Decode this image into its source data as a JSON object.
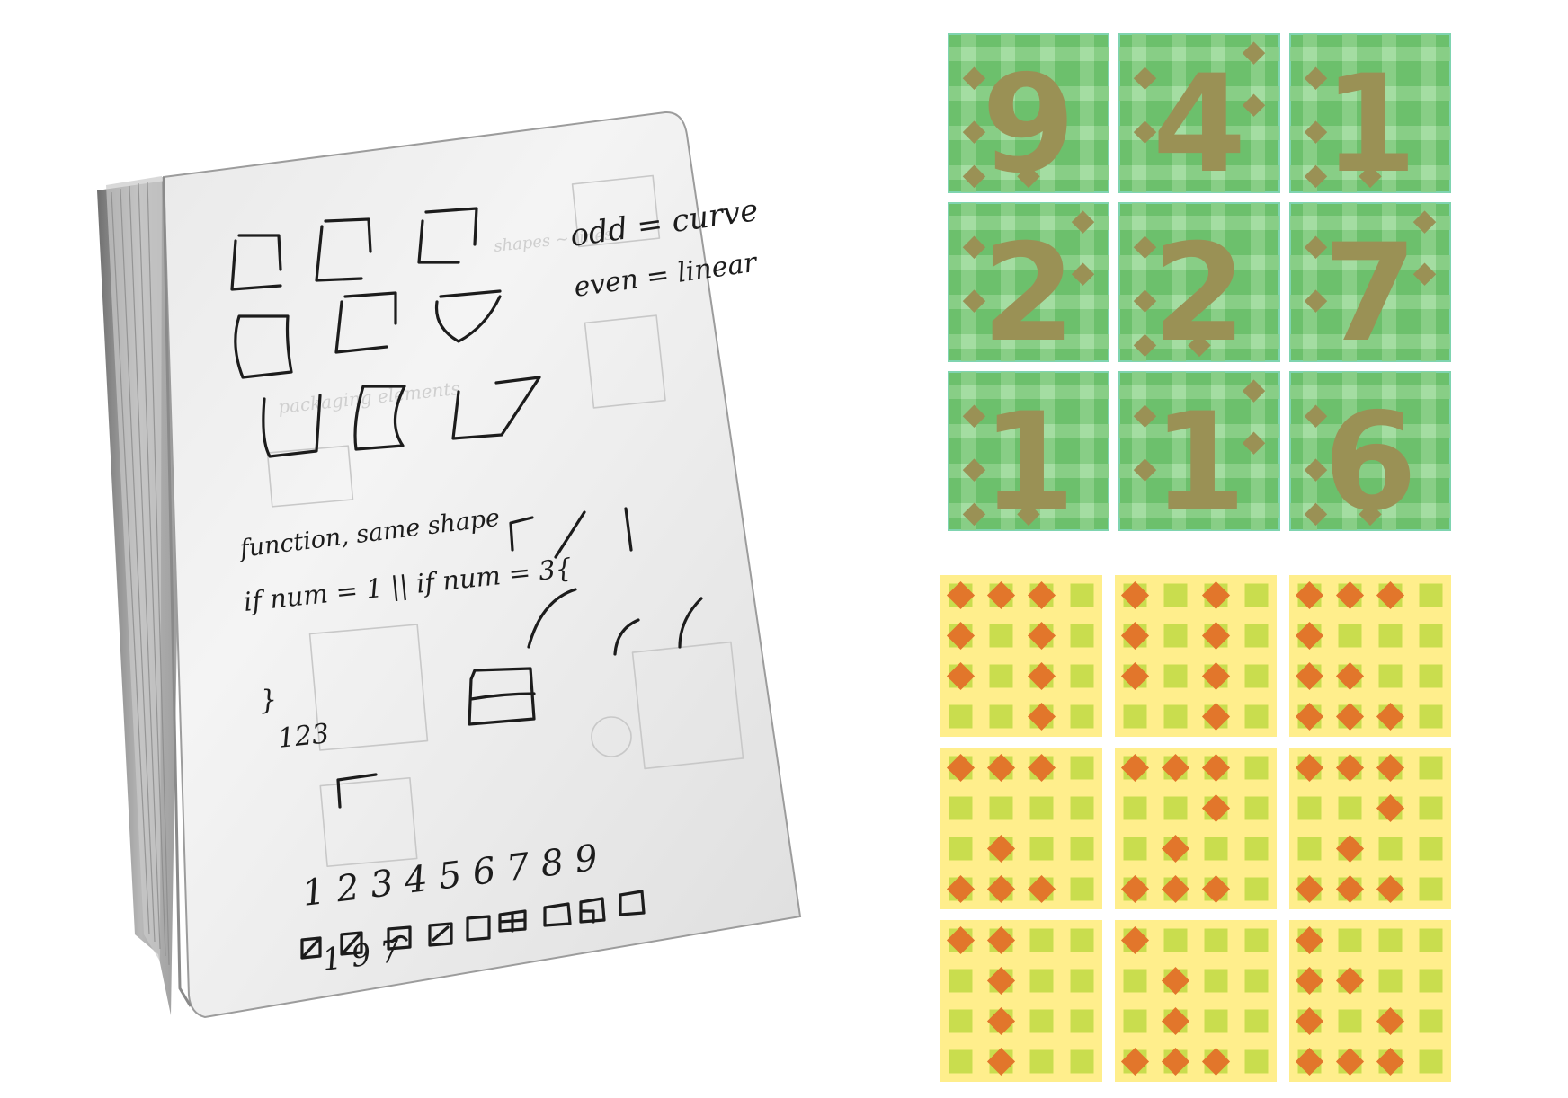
{
  "notebook": {
    "note_odd": "odd = curve",
    "note_even": "even = linear",
    "note_function": "function, same shape",
    "note_if": "if num = 1 || if num = 3{",
    "note_close": "}",
    "note_123": "123",
    "digit_row": "1 2 3 4 5 6 7 8 9",
    "footer_scrawl": "1 9 7"
  },
  "colors": {
    "green_tile_bg": "#6cc06c",
    "green_tile_stripe": "#8dd08b",
    "green_tile_light": "#a6dea4",
    "green_tile_border": "#7fd4b0",
    "digit_color": "#9a9155",
    "diamond_green_grid": "#9a9155",
    "yellow_tile_bg": "#ffee8c",
    "yellow_tile_square": "#c9dd4e",
    "diamond_yellow_grid": "#e2762b"
  },
  "digit_grid": {
    "digits": [
      "9",
      "4",
      "1",
      "2",
      "2",
      "7",
      "1",
      "1",
      "6"
    ]
  },
  "pattern_grid": {
    "tiles": [
      [
        1,
        1,
        1,
        0,
        1,
        0,
        1,
        0,
        1,
        0,
        1,
        0,
        0,
        0,
        1,
        0
      ],
      [
        1,
        0,
        1,
        0,
        1,
        0,
        1,
        0,
        1,
        0,
        1,
        0,
        0,
        0,
        1,
        0
      ],
      [
        1,
        1,
        1,
        0,
        1,
        0,
        0,
        0,
        1,
        1,
        0,
        0,
        1,
        1,
        1,
        0
      ],
      [
        1,
        1,
        1,
        0,
        0,
        0,
        0,
        0,
        0,
        1,
        0,
        0,
        1,
        1,
        1,
        0
      ],
      [
        1,
        1,
        1,
        0,
        0,
        0,
        1,
        0,
        0,
        1,
        0,
        0,
        1,
        1,
        1,
        0
      ],
      [
        1,
        1,
        1,
        0,
        0,
        0,
        1,
        0,
        0,
        1,
        0,
        0,
        1,
        1,
        1,
        0
      ],
      [
        1,
        1,
        0,
        0,
        0,
        1,
        0,
        0,
        0,
        1,
        0,
        0,
        0,
        1,
        0,
        0
      ],
      [
        1,
        0,
        0,
        0,
        0,
        1,
        0,
        0,
        0,
        1,
        0,
        0,
        1,
        1,
        1,
        0
      ],
      [
        1,
        0,
        0,
        0,
        1,
        1,
        0,
        0,
        1,
        0,
        1,
        0,
        1,
        1,
        1,
        0
      ]
    ]
  }
}
